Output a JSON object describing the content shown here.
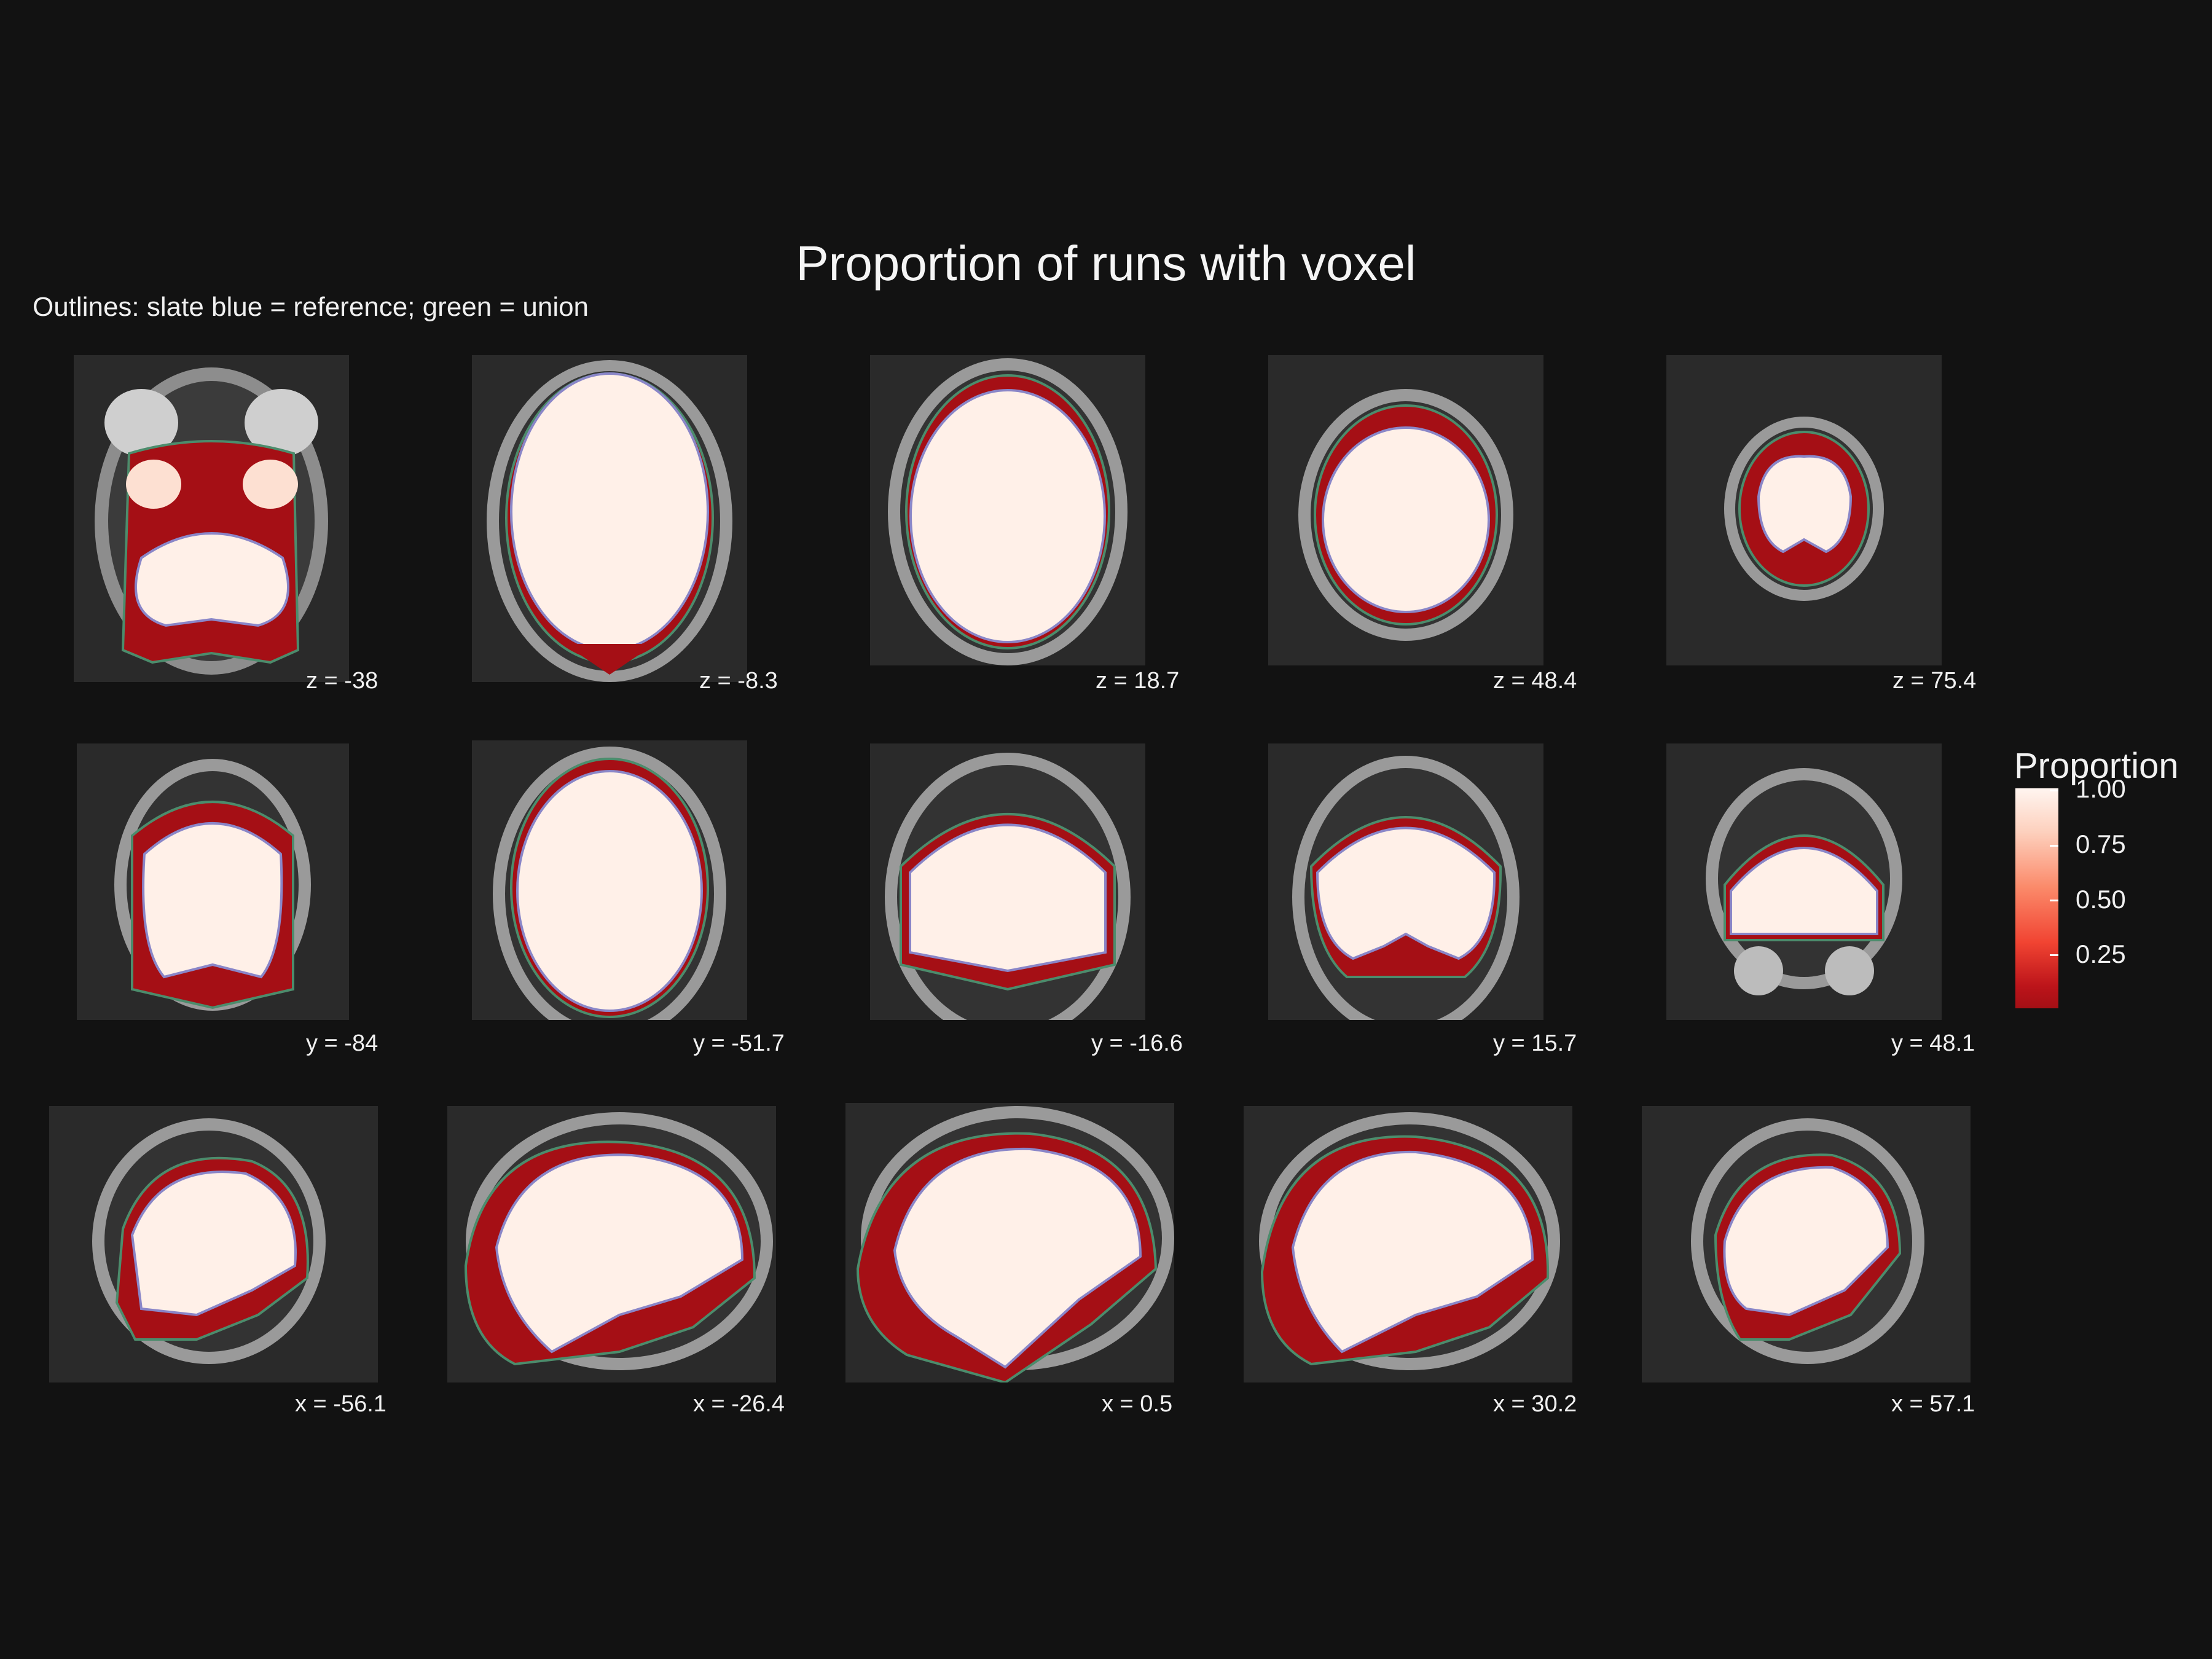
{
  "title": "Proportion of runs with voxel",
  "subtitle": "Outlines: slate blue = reference; green = union",
  "colors": {
    "background": "#121212",
    "reference_outline": "#8a86c8",
    "union_outline": "#4c8c6c",
    "low": "#a50f15",
    "high": "#fff0e8"
  },
  "legend": {
    "title": "Proportion",
    "labels": [
      "1.00",
      "0.75",
      "0.50",
      "0.25"
    ]
  },
  "rows": [
    {
      "view": "axial",
      "panels": [
        {
          "label": "z = -38"
        },
        {
          "label": "z = -8.3"
        },
        {
          "label": "z = 18.7"
        },
        {
          "label": "z = 48.4"
        },
        {
          "label": "z = 75.4"
        }
      ]
    },
    {
      "view": "coronal",
      "panels": [
        {
          "label": "y = -84"
        },
        {
          "label": "y = -51.7"
        },
        {
          "label": "y = -16.6"
        },
        {
          "label": "y = 15.7"
        },
        {
          "label": "y = 48.1"
        }
      ]
    },
    {
      "view": "sagittal",
      "panels": [
        {
          "label": "x = -56.1"
        },
        {
          "label": "x = -26.4"
        },
        {
          "label": "x = 0.5"
        },
        {
          "label": "x = 30.2"
        },
        {
          "label": "x = 57.1"
        }
      ]
    }
  ]
}
